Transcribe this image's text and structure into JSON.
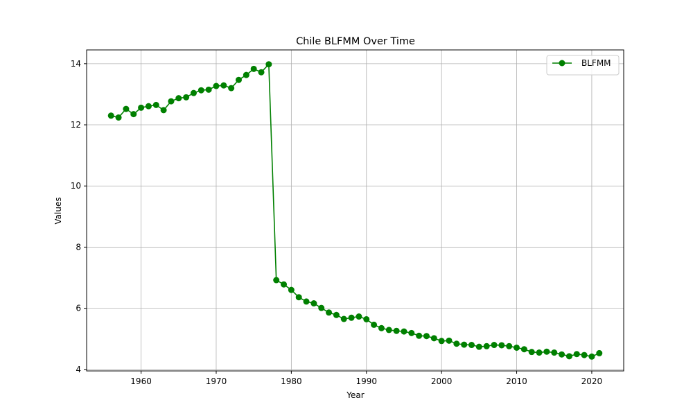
{
  "chart_data": {
    "type": "line",
    "title": "Chile BLFMM Over Time",
    "xlabel": "Year",
    "ylabel": "Values",
    "xlim": [
      1952.75,
      2024.25
    ],
    "ylim": [
      3.95,
      14.45
    ],
    "x_ticks": [
      1960,
      1970,
      1980,
      1990,
      2000,
      2010,
      2020
    ],
    "y_ticks": [
      4,
      6,
      8,
      10,
      12,
      14
    ],
    "grid": true,
    "legend_position": "top-right",
    "colors": {
      "series": "#008000",
      "grid": "#b0b0b0"
    },
    "series": [
      {
        "name": "BLFMM",
        "marker": "circle",
        "x": [
          1956,
          1957,
          1958,
          1959,
          1960,
          1961,
          1962,
          1963,
          1964,
          1965,
          1966,
          1967,
          1968,
          1969,
          1970,
          1971,
          1972,
          1973,
          1974,
          1975,
          1976,
          1977,
          1978,
          1979,
          1980,
          1981,
          1982,
          1983,
          1984,
          1985,
          1986,
          1987,
          1988,
          1989,
          1990,
          1991,
          1992,
          1993,
          1994,
          1995,
          1996,
          1997,
          1998,
          1999,
          2000,
          2001,
          2002,
          2003,
          2004,
          2005,
          2006,
          2007,
          2008,
          2009,
          2010,
          2011,
          2012,
          2013,
          2014,
          2015,
          2016,
          2017,
          2018,
          2019,
          2020,
          2021
        ],
        "y": [
          12.3,
          12.24,
          12.52,
          12.35,
          12.56,
          12.61,
          12.65,
          12.48,
          12.77,
          12.87,
          12.9,
          13.04,
          13.13,
          13.15,
          13.27,
          13.29,
          13.2,
          13.47,
          13.63,
          13.83,
          13.72,
          13.98,
          6.92,
          6.78,
          6.6,
          6.36,
          6.22,
          6.16,
          6.01,
          5.86,
          5.78,
          5.65,
          5.69,
          5.73,
          5.64,
          5.46,
          5.35,
          5.29,
          5.26,
          5.24,
          5.19,
          5.1,
          5.09,
          5.02,
          4.93,
          4.94,
          4.84,
          4.81,
          4.8,
          4.74,
          4.76,
          4.8,
          4.79,
          4.76,
          4.71,
          4.66,
          4.57,
          4.55,
          4.58,
          4.55,
          4.49,
          4.43,
          4.5,
          4.47,
          4.42,
          4.53
        ]
      }
    ]
  }
}
